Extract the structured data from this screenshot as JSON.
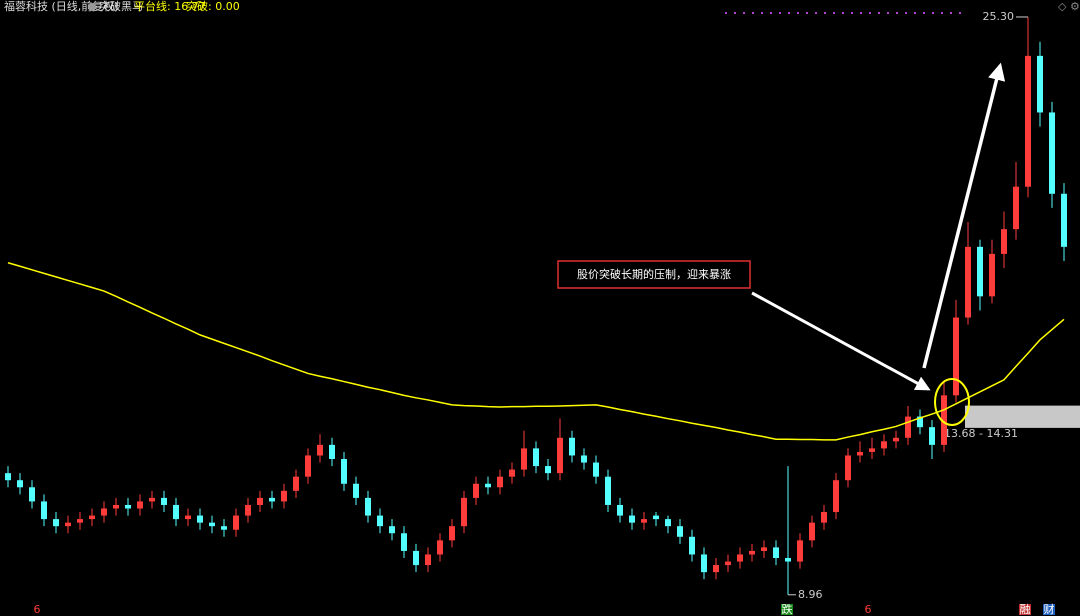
{
  "chart_data": {
    "type": "candlestick",
    "title": "福蓉科技 (日线,前复权)",
    "indicator": "突破黑马",
    "indicator_values": [
      "平台线: 16.77",
      "突破: 0.00"
    ],
    "annotation": "股价突破长期的压制，迎来暴涨",
    "ylim": [
      8.36,
      25.78
    ],
    "up_color": "#ff3c3c",
    "down_color": "#54ffff",
    "ma_color": "#ffff00",
    "candles": [
      [
        12.4,
        12.6,
        12.0,
        12.2
      ],
      [
        12.2,
        12.4,
        11.8,
        12.0
      ],
      [
        12.0,
        12.2,
        11.4,
        11.6
      ],
      [
        11.6,
        11.8,
        10.9,
        11.1
      ],
      [
        11.1,
        11.3,
        10.7,
        10.9
      ],
      [
        10.9,
        11.2,
        10.7,
        11.0
      ],
      [
        11.0,
        11.3,
        10.8,
        11.1
      ],
      [
        11.1,
        11.4,
        10.9,
        11.2
      ],
      [
        11.2,
        11.6,
        11.0,
        11.4
      ],
      [
        11.4,
        11.7,
        11.2,
        11.5
      ],
      [
        11.5,
        11.7,
        11.2,
        11.4
      ],
      [
        11.4,
        11.8,
        11.2,
        11.6
      ],
      [
        11.6,
        11.9,
        11.4,
        11.7
      ],
      [
        11.7,
        11.9,
        11.3,
        11.5
      ],
      [
        11.5,
        11.7,
        10.9,
        11.1
      ],
      [
        11.1,
        11.4,
        10.9,
        11.2
      ],
      [
        11.2,
        11.4,
        10.8,
        11.0
      ],
      [
        11.0,
        11.2,
        10.7,
        10.9
      ],
      [
        10.9,
        11.1,
        10.6,
        10.8
      ],
      [
        10.8,
        11.4,
        10.6,
        11.2
      ],
      [
        11.2,
        11.7,
        11.0,
        11.5
      ],
      [
        11.5,
        11.9,
        11.3,
        11.7
      ],
      [
        11.7,
        11.9,
        11.4,
        11.6
      ],
      [
        11.6,
        12.1,
        11.4,
        11.9
      ],
      [
        11.9,
        12.5,
        11.7,
        12.3
      ],
      [
        12.3,
        13.1,
        12.1,
        12.9
      ],
      [
        12.9,
        13.5,
        12.7,
        13.2
      ],
      [
        13.2,
        13.4,
        12.6,
        12.8
      ],
      [
        12.8,
        13.0,
        11.9,
        12.1
      ],
      [
        12.1,
        12.3,
        11.5,
        11.7
      ],
      [
        11.7,
        11.9,
        11.0,
        11.2
      ],
      [
        11.2,
        11.4,
        10.7,
        10.9
      ],
      [
        10.9,
        11.1,
        10.5,
        10.7
      ],
      [
        10.7,
        10.9,
        10.0,
        10.2
      ],
      [
        10.2,
        10.4,
        9.6,
        9.8
      ],
      [
        9.8,
        10.3,
        9.6,
        10.1
      ],
      [
        10.1,
        10.7,
        9.9,
        10.5
      ],
      [
        10.5,
        11.1,
        10.3,
        10.9
      ],
      [
        10.9,
        11.9,
        10.7,
        11.7
      ],
      [
        11.7,
        12.3,
        11.5,
        12.1
      ],
      [
        12.1,
        12.3,
        11.8,
        12.0
      ],
      [
        12.0,
        12.5,
        11.8,
        12.3
      ],
      [
        12.3,
        12.7,
        12.1,
        12.5
      ],
      [
        12.5,
        13.6,
        12.3,
        13.1
      ],
      [
        13.1,
        13.3,
        12.4,
        12.6
      ],
      [
        12.6,
        12.8,
        12.2,
        12.4
      ],
      [
        12.4,
        13.95,
        12.2,
        13.4
      ],
      [
        13.4,
        13.6,
        12.7,
        12.9
      ],
      [
        12.9,
        13.1,
        12.5,
        12.7
      ],
      [
        12.7,
        12.9,
        12.1,
        12.3
      ],
      [
        12.3,
        12.5,
        11.3,
        11.5
      ],
      [
        11.5,
        11.7,
        11.0,
        11.2
      ],
      [
        11.2,
        11.4,
        10.8,
        11.0
      ],
      [
        11.0,
        11.3,
        10.8,
        11.1
      ],
      [
        11.2,
        11.3,
        10.9,
        11.1
      ],
      [
        11.1,
        11.2,
        10.7,
        10.9
      ],
      [
        10.9,
        11.1,
        10.4,
        10.6
      ],
      [
        10.6,
        10.8,
        9.9,
        10.1
      ],
      [
        10.1,
        10.3,
        9.4,
        9.6
      ],
      [
        9.6,
        10.0,
        9.4,
        9.8
      ],
      [
        9.8,
        10.1,
        9.6,
        9.9
      ],
      [
        9.9,
        10.3,
        9.7,
        10.1
      ],
      [
        10.1,
        10.4,
        9.9,
        10.2
      ],
      [
        10.2,
        10.5,
        10.0,
        10.3
      ],
      [
        10.3,
        10.5,
        9.8,
        10.0
      ],
      [
        10.0,
        12.6,
        8.96,
        9.9
      ],
      [
        9.9,
        10.7,
        9.7,
        10.5
      ],
      [
        10.5,
        11.2,
        10.3,
        11.0
      ],
      [
        11.0,
        11.5,
        10.8,
        11.3
      ],
      [
        11.3,
        12.4,
        11.1,
        12.2
      ],
      [
        12.2,
        13.1,
        12.0,
        12.9
      ],
      [
        12.9,
        13.3,
        12.7,
        13.0
      ],
      [
        13.0,
        13.4,
        12.8,
        13.1
      ],
      [
        13.1,
        13.5,
        12.9,
        13.3
      ],
      [
        13.3,
        13.6,
        13.1,
        13.4
      ],
      [
        13.4,
        14.3,
        13.2,
        14.0
      ],
      [
        14.0,
        14.2,
        13.5,
        13.7
      ],
      [
        13.7,
        13.9,
        12.8,
        13.2
      ],
      [
        13.2,
        15.0,
        13.0,
        14.6
      ],
      [
        14.6,
        17.3,
        14.4,
        16.8
      ],
      [
        16.8,
        19.5,
        16.6,
        18.8
      ],
      [
        18.8,
        19.0,
        17.0,
        17.4
      ],
      [
        17.4,
        19.0,
        17.2,
        18.6
      ],
      [
        18.6,
        19.8,
        18.2,
        19.3
      ],
      [
        19.3,
        21.2,
        19.0,
        20.5
      ],
      [
        20.5,
        25.3,
        20.2,
        24.2
      ],
      [
        24.2,
        24.6,
        22.2,
        22.6
      ],
      [
        22.6,
        22.9,
        19.9,
        20.3
      ],
      [
        20.3,
        20.6,
        18.4,
        18.8
      ]
    ],
    "ma": [
      18.35,
      18.25,
      18.15,
      18.05,
      17.95,
      17.85,
      17.75,
      17.65,
      17.55,
      17.4,
      17.24,
      17.09,
      16.93,
      16.78,
      16.62,
      16.47,
      16.31,
      16.19,
      16.07,
      15.95,
      15.83,
      15.71,
      15.58,
      15.46,
      15.34,
      15.22,
      15.14,
      15.07,
      14.99,
      14.91,
      14.83,
      14.76,
      14.68,
      14.6,
      14.53,
      14.47,
      14.4,
      14.33,
      14.31,
      14.3,
      14.28,
      14.27,
      14.28,
      14.28,
      14.29,
      14.29,
      14.3,
      14.31,
      14.32,
      14.33,
      14.27,
      14.2,
      14.14,
      14.07,
      14.01,
      13.94,
      13.88,
      13.81,
      13.75,
      13.69,
      13.62,
      13.56,
      13.49,
      13.43,
      13.36,
      13.36,
      13.35,
      13.35,
      13.34,
      13.34,
      13.42,
      13.49,
      13.57,
      13.64,
      13.72,
      13.84,
      13.96,
      14.07,
      14.19,
      14.36,
      14.53,
      14.7,
      14.87,
      15.04,
      15.42,
      15.79,
      16.17,
      16.46,
      16.75
    ],
    "zone": {
      "low": 13.68,
      "high": 14.31,
      "label": "13.68 - 14.31"
    },
    "high_label": {
      "value": 25.3,
      "label": "25.30"
    },
    "low_label": {
      "value": 8.96,
      "label": "8.96"
    },
    "markers": [
      "6",
      "跌",
      "6",
      "融",
      "财"
    ]
  }
}
